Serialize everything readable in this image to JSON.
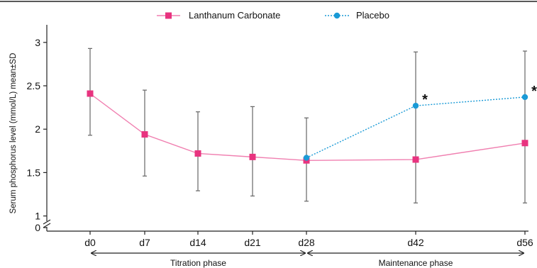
{
  "chart_data": {
    "type": "line",
    "title": "",
    "xlabel": "",
    "ylabel": "Serum phosphorus level (mmol/L) mean±SD",
    "categories": [
      "d0",
      "d7",
      "d14",
      "d21",
      "d28",
      "d42",
      "d56"
    ],
    "x_days": [
      0,
      7,
      14,
      21,
      28,
      42,
      56
    ],
    "yticks": [
      "0",
      "1",
      "1.5",
      "2",
      "2.5",
      "3"
    ],
    "ylim": [
      1,
      3.2
    ],
    "axis_break": true,
    "grid": false,
    "legend_position": "top",
    "series": [
      {
        "name": "Lanthanum Carbonate",
        "color": "#e8337f",
        "line_color": "#f07fb0",
        "marker": "square",
        "line_style": "solid",
        "points": [
          {
            "x": "d0",
            "y": 2.41,
            "sd_low": 1.93,
            "sd_high": 2.93
          },
          {
            "x": "d7",
            "y": 1.94,
            "sd_low": 1.46,
            "sd_high": 2.45
          },
          {
            "x": "d14",
            "y": 1.72,
            "sd_low": 1.29,
            "sd_high": 2.2
          },
          {
            "x": "d21",
            "y": 1.68,
            "sd_low": 1.23,
            "sd_high": 2.26
          },
          {
            "x": "d28",
            "y": 1.64,
            "sd_low": 1.17,
            "sd_high": 2.13
          },
          {
            "x": "d42",
            "y": 1.65,
            "sd_low": null,
            "sd_high": null
          },
          {
            "x": "d56",
            "y": 1.84,
            "sd_low": null,
            "sd_high": null
          }
        ]
      },
      {
        "name": "Placebo",
        "color": "#1a9ad6",
        "line_color": "#1a9ad6",
        "marker": "circle",
        "line_style": "dotted",
        "points": [
          {
            "x": "d28",
            "y": 1.67,
            "sd_low": null,
            "sd_high": null
          },
          {
            "x": "d42",
            "y": 2.27,
            "sd_low": 1.15,
            "sd_high": 2.89,
            "significance": "*"
          },
          {
            "x": "d56",
            "y": 2.37,
            "sd_low": 1.15,
            "sd_high": 2.9,
            "significance": "*"
          }
        ]
      }
    ],
    "phases": [
      {
        "label": "Titration phase",
        "from": "d0",
        "to": "d28"
      },
      {
        "label": "Maintenance phase",
        "from": "d28",
        "to": "d56"
      }
    ]
  }
}
